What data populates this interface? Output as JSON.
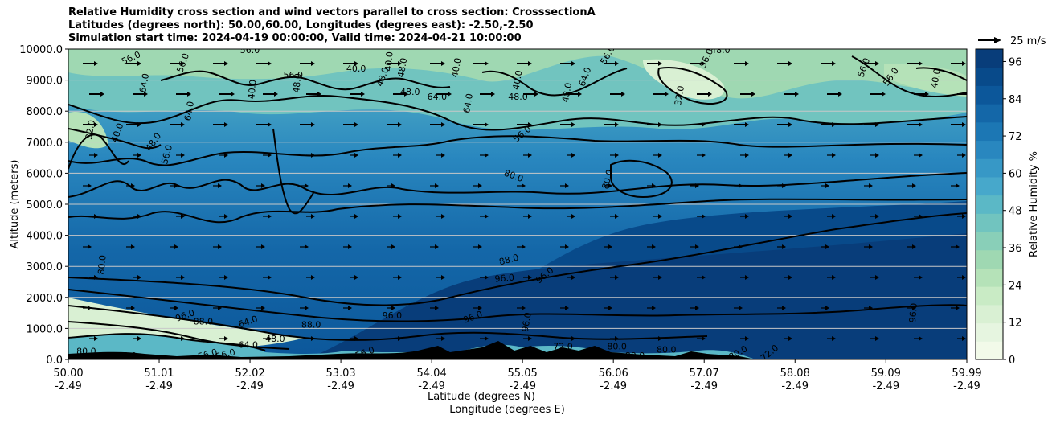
{
  "chart_data": {
    "type": "heatmap",
    "title_lines": [
      "Relative Humidity cross section and wind vectors parallel to cross section: CrosssectionA",
      "Latitudes (degrees north): 50.00,60.00, Longitudes (degrees east): -2.50,-2.50",
      "Simulation start time: 2024-04-19 00:00:00, Valid time: 2024-04-21 10:00:00"
    ],
    "ylabel": "Altitude (meters)",
    "xlabel_lines": [
      "Latitude (degrees N)",
      "Longitude (degrees E)"
    ],
    "y_ticks": [
      "0.0",
      "1000.0",
      "2000.0",
      "3000.0",
      "4000.0",
      "5000.0",
      "6000.0",
      "7000.0",
      "8000.0",
      "9000.0",
      "10000.0"
    ],
    "ylim": [
      0,
      10000
    ],
    "x_ticks": [
      {
        "lat": "50.00",
        "lon": "-2.49"
      },
      {
        "lat": "51.01",
        "lon": "-2.49"
      },
      {
        "lat": "52.02",
        "lon": "-2.49"
      },
      {
        "lat": "53.03",
        "lon": "-2.49"
      },
      {
        "lat": "54.04",
        "lon": "-2.49"
      },
      {
        "lat": "55.05",
        "lon": "-2.49"
      },
      {
        "lat": "56.06",
        "lon": "-2.49"
      },
      {
        "lat": "57.07",
        "lon": "-2.49"
      },
      {
        "lat": "58.08",
        "lon": "-2.49"
      },
      {
        "lat": "59.09",
        "lon": "-2.49"
      },
      {
        "lat": "59.99",
        "lon": "-2.49"
      }
    ],
    "xlim": [
      50.0,
      59.99
    ],
    "colorbar": {
      "label": "Relative Humidity %",
      "ticks": [
        "0",
        "12",
        "24",
        "36",
        "48",
        "60",
        "72",
        "84",
        "96"
      ],
      "range": [
        0,
        100
      ],
      "colors": [
        "#f2fae9",
        "#e6f5e0",
        "#d9f0d3",
        "#c9ebc5",
        "#b5e2b8",
        "#9fd8b2",
        "#89cfb8",
        "#71c4bf",
        "#5bb8c6",
        "#47a8cb",
        "#3798c6",
        "#2987bf",
        "#1c77b4",
        "#1467a8",
        "#0c579a",
        "#084a8a",
        "#083d7a"
      ]
    },
    "wind_key": {
      "label": "25 m/s"
    },
    "contour_labels": [
      {
        "text": "56.0",
        "lat": 50.7,
        "alt": 9700,
        "rot": -25
      },
      {
        "text": "56.0",
        "lat": 51.28,
        "alt": 9550,
        "rot": -70
      },
      {
        "text": "56.0",
        "lat": 52.02,
        "alt": 9950,
        "rot": 0
      },
      {
        "text": "56.0",
        "lat": 52.5,
        "alt": 9150,
        "rot": 0
      },
      {
        "text": "40.0",
        "lat": 52.05,
        "alt": 8700,
        "rot": -85
      },
      {
        "text": "48.0",
        "lat": 52.55,
        "alt": 8900,
        "rot": -85
      },
      {
        "text": "40.0",
        "lat": 53.2,
        "alt": 9350,
        "rot": 0
      },
      {
        "text": "48.0",
        "lat": 53.5,
        "alt": 9100,
        "rot": -70
      },
      {
        "text": "40.0",
        "lat": 53.57,
        "alt": 9600,
        "rot": -85
      },
      {
        "text": "48.0",
        "lat": 53.8,
        "alt": 8600,
        "rot": 0
      },
      {
        "text": "48.0",
        "lat": 53.72,
        "alt": 9400,
        "rot": -80
      },
      {
        "text": "40.0",
        "lat": 54.32,
        "alt": 9400,
        "rot": -80
      },
      {
        "text": "64.0",
        "lat": 54.1,
        "alt": 8450,
        "rot": 0
      },
      {
        "text": "64.0",
        "lat": 54.45,
        "alt": 8250,
        "rot": -80
      },
      {
        "text": "40.0",
        "lat": 55.0,
        "alt": 9000,
        "rot": -80
      },
      {
        "text": "48.0",
        "lat": 55.0,
        "alt": 8450,
        "rot": 0
      },
      {
        "text": "48.0",
        "lat": 55.55,
        "alt": 8600,
        "rot": -80
      },
      {
        "text": "64.0",
        "lat": 55.75,
        "alt": 9100,
        "rot": -70
      },
      {
        "text": "56.0",
        "lat": 56.0,
        "alt": 9800,
        "rot": -60
      },
      {
        "text": "48.0",
        "lat": 57.25,
        "alt": 9950,
        "rot": 0
      },
      {
        "text": "56.0",
        "lat": 57.1,
        "alt": 9700,
        "rot": -65
      },
      {
        "text": "32.0",
        "lat": 56.8,
        "alt": 8500,
        "rot": -80
      },
      {
        "text": "56.0",
        "lat": 58.85,
        "alt": 9400,
        "rot": -70
      },
      {
        "text": "56.0",
        "lat": 59.15,
        "alt": 9100,
        "rot": -55
      },
      {
        "text": "40.0",
        "lat": 59.65,
        "alt": 9050,
        "rot": -80
      },
      {
        "text": "64.0",
        "lat": 50.85,
        "alt": 8900,
        "rot": -80
      },
      {
        "text": "64.0",
        "lat": 51.35,
        "alt": 8000,
        "rot": -80
      },
      {
        "text": "32.0",
        "lat": 50.25,
        "alt": 7400,
        "rot": -80
      },
      {
        "text": "40.0",
        "lat": 50.55,
        "alt": 7300,
        "rot": -70
      },
      {
        "text": "48.0",
        "lat": 50.95,
        "alt": 7000,
        "rot": -55
      },
      {
        "text": "56.0",
        "lat": 51.1,
        "alt": 6600,
        "rot": -75
      },
      {
        "text": "56.0",
        "lat": 55.05,
        "alt": 7250,
        "rot": -40
      },
      {
        "text": "80.0",
        "lat": 54.95,
        "alt": 5900,
        "rot": 20
      },
      {
        "text": "80.0",
        "lat": 56.0,
        "alt": 5800,
        "rot": -75
      },
      {
        "text": "80.0",
        "lat": 50.38,
        "alt": 3050,
        "rot": -85
      },
      {
        "text": "88.0",
        "lat": 54.9,
        "alt": 3200,
        "rot": -15
      },
      {
        "text": "96.0",
        "lat": 54.85,
        "alt": 2600,
        "rot": -5
      },
      {
        "text": "96.0",
        "lat": 55.3,
        "alt": 2700,
        "rot": -40
      },
      {
        "text": "96.0",
        "lat": 53.6,
        "alt": 1400,
        "rot": 0
      },
      {
        "text": "88.0",
        "lat": 52.7,
        "alt": 1100,
        "rot": 0
      },
      {
        "text": "96.0",
        "lat": 54.5,
        "alt": 1350,
        "rot": -20
      },
      {
        "text": "96.0",
        "lat": 55.1,
        "alt": 1200,
        "rot": -80
      },
      {
        "text": "96.0",
        "lat": 59.4,
        "alt": 1500,
        "rot": -85
      },
      {
        "text": "72.0",
        "lat": 55.5,
        "alt": 400,
        "rot": 0
      },
      {
        "text": "80.0",
        "lat": 56.1,
        "alt": 400,
        "rot": 0
      },
      {
        "text": "80.0",
        "lat": 56.3,
        "alt": 100,
        "rot": 0
      },
      {
        "text": "80.0",
        "lat": 56.65,
        "alt": 300,
        "rot": 0
      },
      {
        "text": "72.0",
        "lat": 57.8,
        "alt": 200,
        "rot": -40
      },
      {
        "text": "80.0",
        "lat": 57.45,
        "alt": 200,
        "rot": -30
      },
      {
        "text": "48.0",
        "lat": 52.3,
        "alt": 650,
        "rot": 0
      },
      {
        "text": "64.0",
        "lat": 52.0,
        "alt": 450,
        "rot": 0
      },
      {
        "text": "80.0",
        "lat": 50.2,
        "alt": 250,
        "rot": 0
      },
      {
        "text": "56.0",
        "lat": 50.65,
        "alt": 100,
        "rot": 0
      },
      {
        "text": "56.0",
        "lat": 51.55,
        "alt": 150,
        "rot": -15
      },
      {
        "text": "56.0",
        "lat": 51.75,
        "alt": 150,
        "rot": -15
      },
      {
        "text": "56.0",
        "lat": 53.3,
        "alt": 200,
        "rot": -20
      },
      {
        "text": "96.0",
        "lat": 51.3,
        "alt": 1400,
        "rot": -20
      },
      {
        "text": "88.0",
        "lat": 51.5,
        "alt": 1200,
        "rot": 0
      },
      {
        "text": "64.0",
        "lat": 52.0,
        "alt": 1200,
        "rot": -20
      }
    ]
  }
}
